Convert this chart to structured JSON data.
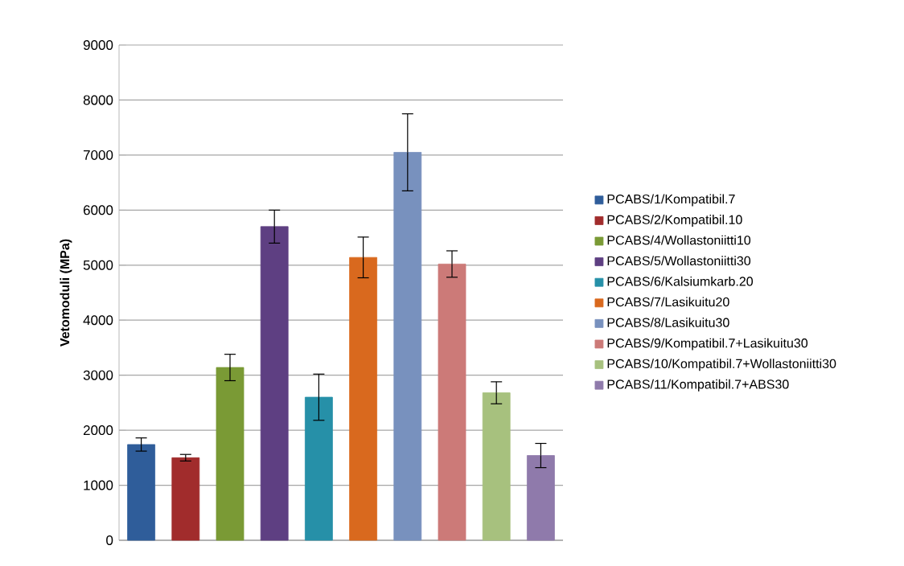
{
  "chart_data": {
    "type": "bar",
    "ylabel": "Vetomoduli (MPa)",
    "categories": [
      null
    ],
    "series": [
      {
        "name": "PCABS/1/Kompatibil.7",
        "color": "#2f5d9a",
        "values": [
          1740
        ],
        "errors": [
          120
        ]
      },
      {
        "name": "PCABS/2/Kompatibil.10",
        "color": "#a12c2c",
        "values": [
          1500
        ],
        "errors": [
          60
        ]
      },
      {
        "name": "PCABS/4/Wollastoniitti10",
        "color": "#7a9a35",
        "values": [
          3140
        ],
        "errors": [
          240
        ]
      },
      {
        "name": "PCABS/5/Wollastoniitti30",
        "color": "#5e3f82",
        "values": [
          5700
        ],
        "errors": [
          300
        ]
      },
      {
        "name": "PCABS/6/Kalsiumkarb.20",
        "color": "#2690a8",
        "values": [
          2600
        ],
        "errors": [
          420
        ]
      },
      {
        "name": "PCABS/7/Lasikuitu20",
        "color": "#d9691e",
        "values": [
          5140
        ],
        "errors": [
          370
        ]
      },
      {
        "name": "PCABS/8/Lasikuitu30",
        "color": "#7891be",
        "values": [
          7050
        ],
        "errors": [
          700
        ]
      },
      {
        "name": "PCABS/9/Kompatibil.7+Lasikuitu30",
        "color": "#cc7a78",
        "values": [
          5020
        ],
        "errors": [
          240
        ]
      },
      {
        "name": "PCABS/10/Kompatibil.7+Wollastoniitti30",
        "color": "#a7c17e",
        "values": [
          2680
        ],
        "errors": [
          200
        ]
      },
      {
        "name": "PCABS/11/Kompatibil.7+ABS30",
        "color": "#8f7aab",
        "values": [
          1540
        ],
        "errors": [
          220
        ]
      }
    ],
    "ylim": [
      0,
      9000
    ],
    "yticks": [
      0,
      1000,
      2000,
      3000,
      4000,
      5000,
      6000,
      7000,
      8000,
      9000
    ],
    "grid": "y",
    "legend": "right"
  }
}
